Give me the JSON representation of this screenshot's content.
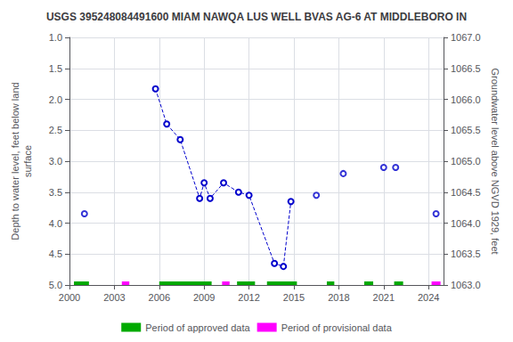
{
  "chart_data": {
    "type": "line",
    "title": "USGS 395248084491600 MIAM NAWQA LUS WELL BVAS AG-6 AT MIDDLEBORO IN",
    "ylabel": "Depth to water level, feet below land\nsurface",
    "y2label": "Groundwater level above NGVD 1929, feet",
    "xlim": [
      2000,
      2025
    ],
    "xticks": [
      2000,
      2003,
      2006,
      2009,
      2012,
      2015,
      2018,
      2021,
      2024
    ],
    "ylim": [
      5.0,
      1.0
    ],
    "yticks": [
      {
        "value": 1.0,
        "label": "1.0"
      },
      1.5,
      {
        "value": 2.0,
        "label": "2.0"
      },
      2.5,
      {
        "value": 3.0,
        "label": "3.0"
      },
      3.5,
      {
        "value": 4.0,
        "label": "4.0"
      },
      4.5,
      {
        "value": 5.0,
        "label": "5.0"
      }
    ],
    "y2lim": [
      1063.0,
      1067.0
    ],
    "y2ticks": [
      {
        "value": 1063.0,
        "label": "1063.0"
      },
      1063.5,
      {
        "value": 1064.0,
        "label": "1064.0"
      },
      1064.5,
      {
        "value": 1065.0,
        "label": "1065.0"
      },
      1065.5,
      {
        "value": 1066.0,
        "label": "1066.0"
      },
      1066.5,
      {
        "value": 1067.0,
        "label": "1067.0"
      }
    ],
    "grid": true,
    "legend": "bottom",
    "series": [
      {
        "type": "line",
        "color": "#0000cc",
        "marker": "circle",
        "line_style": "dashed",
        "x": [
          2005.75,
          2006.5,
          2007.4,
          2008.7,
          2009.0,
          2009.4,
          2010.3,
          2011.3,
          2012.0,
          2013.7,
          2014.3,
          2014.8
        ],
        "values": [
          1.83,
          2.4,
          2.65,
          3.6,
          3.35,
          3.6,
          3.35,
          3.5,
          3.55,
          4.65,
          4.7,
          3.65
        ]
      },
      {
        "type": "scatter",
        "color": "#0000cc",
        "marker": "circle",
        "x": [
          2001.0,
          2016.5,
          2018.3,
          2021.0,
          2021.8,
          2024.5
        ],
        "values": [
          3.85,
          3.55,
          3.2,
          3.1,
          3.1,
          3.85
        ]
      },
      {
        "type": "bar",
        "orientation": "horizontal",
        "name": "Period of approved data",
        "color": "#00aa00",
        "y": 5.0,
        "ranges": [
          [
            2000.3,
            2001.3
          ],
          [
            2006.0,
            2009.5
          ],
          [
            2011.2,
            2012.4
          ],
          [
            2013.2,
            2015.2
          ],
          [
            2017.2,
            2017.7
          ],
          [
            2019.7,
            2020.3
          ],
          [
            2021.7,
            2022.3
          ]
        ]
      },
      {
        "type": "bar",
        "orientation": "horizontal",
        "name": "Period of provisional data",
        "color": "#ff00ff",
        "y": 5.0,
        "ranges": [
          [
            2003.5,
            2004.0
          ],
          [
            2010.2,
            2010.7
          ],
          [
            2024.2,
            2024.8
          ]
        ]
      }
    ]
  }
}
